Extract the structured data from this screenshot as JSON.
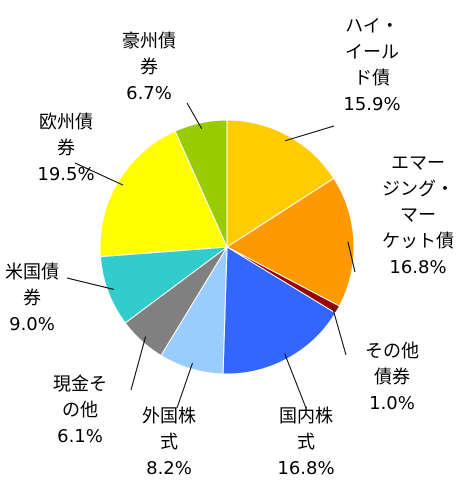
{
  "chart_data": {
    "type": "pie",
    "start": "top",
    "direction": "clockwise",
    "slices": [
      {
        "lines": [
          "ハイ・",
          "イール",
          "ド債"
        ],
        "value_label": "15.9%",
        "value": 15.9,
        "color": "#FFCC00"
      },
      {
        "lines": [
          "エマー",
          "ジング・",
          "マー",
          "ケット債"
        ],
        "value_label": "16.8%",
        "value": 16.8,
        "color": "#FF9900"
      },
      {
        "lines": [
          "その他",
          "債券"
        ],
        "value_label": "1.0%",
        "value": 1.0,
        "color": "#990000"
      },
      {
        "lines": [
          "国内株",
          "式"
        ],
        "value_label": "16.8%",
        "value": 16.8,
        "color": "#3366FF"
      },
      {
        "lines": [
          "外国株",
          "式"
        ],
        "value_label": "8.2%",
        "value": 8.2,
        "color": "#99CCFF"
      },
      {
        "lines": [
          "現金そ",
          "の他"
        ],
        "value_label": "6.1%",
        "value": 6.1,
        "color": "#808080"
      },
      {
        "lines": [
          "米国債",
          "券"
        ],
        "value_label": "9.0%",
        "value": 9.0,
        "color": "#33CCCC"
      },
      {
        "lines": [
          "欧州債",
          "券"
        ],
        "value_label": "19.5%",
        "value": 19.5,
        "color": "#FFFF00"
      },
      {
        "lines": [
          "豪州債",
          "券"
        ],
        "value_label": "6.7%",
        "value": 6.7,
        "color": "#99CC00"
      }
    ]
  }
}
